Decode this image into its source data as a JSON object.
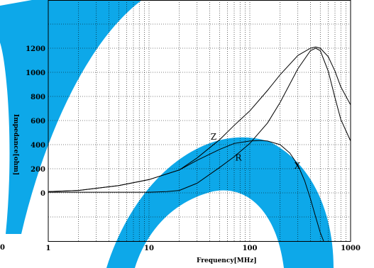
{
  "chart_data": {
    "type": "line",
    "title": "",
    "xlabel": "Frequency[MHz]",
    "ylabel": "Impedance[ohm]",
    "x_scale": "log",
    "xlim": [
      1,
      1000
    ],
    "ylim": [
      -400,
      1600
    ],
    "x_ticks": [
      1,
      10,
      100,
      1000
    ],
    "x_tick_labels": [
      "1",
      "10",
      "100",
      "1000"
    ],
    "y_ticks": [
      0,
      200,
      400,
      600,
      800,
      1000,
      1200
    ],
    "y_tick_labels": [
      "0",
      "200",
      "400",
      "600",
      "800",
      "1000",
      "1200"
    ],
    "corner_label": "0",
    "grid": true,
    "decoration_color": "#00a3e8",
    "series": [
      {
        "name": "Z",
        "color": "#000000",
        "x": [
          1,
          2,
          5,
          10,
          20,
          30,
          50,
          70,
          100,
          150,
          200,
          300,
          400,
          450,
          500,
          600,
          700,
          800,
          1000
        ],
        "y": [
          10,
          20,
          60,
          110,
          190,
          290,
          440,
          560,
          680,
          850,
          980,
          1140,
          1200,
          1210,
          1200,
          1130,
          1010,
          880,
          730
        ]
      },
      {
        "name": "R",
        "color": "#000000",
        "x": [
          1,
          5,
          10,
          15,
          20,
          30,
          50,
          70,
          100,
          150,
          200,
          300,
          400,
          450,
          500,
          600,
          700,
          800,
          1000
        ],
        "y": [
          5,
          5,
          5,
          10,
          20,
          80,
          210,
          300,
          410,
          580,
          750,
          1030,
          1180,
          1200,
          1180,
          1010,
          790,
          610,
          430
        ]
      },
      {
        "name": "X",
        "color": "#000000",
        "x": [
          1,
          2,
          5,
          10,
          20,
          30,
          50,
          70,
          100,
          130,
          150,
          200,
          250,
          300,
          350,
          400,
          450,
          500,
          540
        ],
        "y": [
          10,
          20,
          60,
          110,
          190,
          270,
          360,
          410,
          430,
          435,
          430,
          400,
          330,
          230,
          100,
          -50,
          -200,
          -330,
          -400
        ]
      }
    ]
  }
}
